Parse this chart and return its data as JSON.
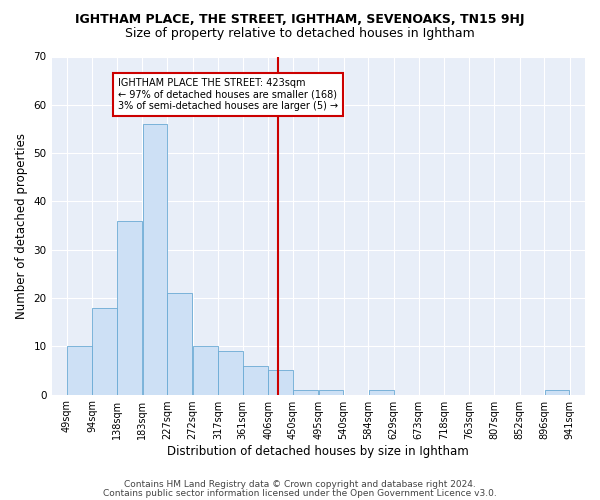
{
  "title": "IGHTHAM PLACE, THE STREET, IGHTHAM, SEVENOAKS, TN15 9HJ",
  "subtitle": "Size of property relative to detached houses in Ightham",
  "xlabel": "Distribution of detached houses by size in Ightham",
  "ylabel": "Number of detached properties",
  "bar_color": "#cde0f5",
  "bar_edge_color": "#6aaad4",
  "bins": [
    49,
    94,
    138,
    183,
    227,
    272,
    317,
    361,
    406,
    450,
    495,
    540,
    584,
    629,
    673,
    718,
    763,
    807,
    852,
    896,
    941
  ],
  "counts": [
    10,
    18,
    36,
    56,
    21,
    10,
    9,
    6,
    5,
    1,
    1,
    0,
    1,
    0,
    0,
    0,
    0,
    0,
    0,
    1
  ],
  "tick_labels": [
    "49sqm",
    "94sqm",
    "138sqm",
    "183sqm",
    "227sqm",
    "272sqm",
    "317sqm",
    "361sqm",
    "406sqm",
    "450sqm",
    "495sqm",
    "540sqm",
    "584sqm",
    "629sqm",
    "673sqm",
    "718sqm",
    "763sqm",
    "807sqm",
    "852sqm",
    "896sqm",
    "941sqm"
  ],
  "vline_x": 423,
  "vline_color": "#cc0000",
  "annotation_text": "IGHTHAM PLACE THE STREET: 423sqm\n← 97% of detached houses are smaller (168)\n3% of semi-detached houses are larger (5) →",
  "annotation_box_color": "#ffffff",
  "annotation_box_edge": "#cc0000",
  "ylim": [
    0,
    70
  ],
  "yticks": [
    0,
    10,
    20,
    30,
    40,
    50,
    60,
    70
  ],
  "background_color": "#e8eef8",
  "footer1": "Contains HM Land Registry data © Crown copyright and database right 2024.",
  "footer2": "Contains public sector information licensed under the Open Government Licence v3.0.",
  "title_fontsize": 9,
  "subtitle_fontsize": 9,
  "xlabel_fontsize": 8.5,
  "ylabel_fontsize": 8.5,
  "tick_fontsize": 7,
  "footer_fontsize": 6.5,
  "ann_fontsize": 7
}
